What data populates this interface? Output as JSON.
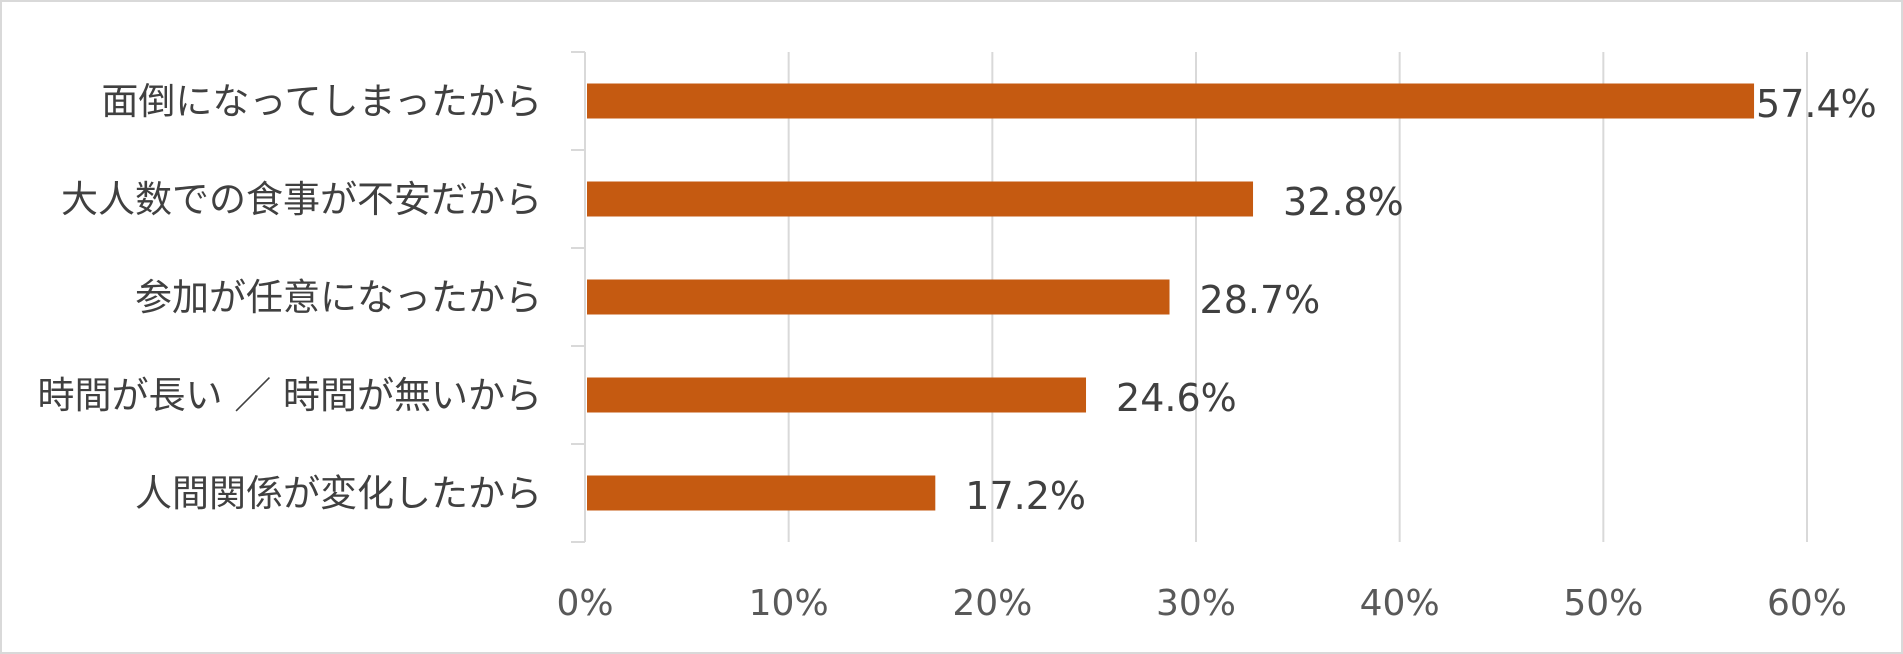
{
  "chart_data": {
    "type": "bar",
    "orientation": "horizontal",
    "categories": [
      "面倒になってしまったから",
      "大人数での食事が不安だから",
      "参加が任意になったから",
      "時間が長い ／ 時間が無いから",
      "人間関係が変化したから"
    ],
    "values": [
      57.4,
      32.8,
      28.7,
      24.6,
      17.2
    ],
    "value_labels": [
      "57.4%",
      "32.8%",
      "28.7%",
      "24.6%",
      "17.2%"
    ],
    "xlim": [
      0,
      60
    ],
    "xticks": [
      0,
      10,
      20,
      30,
      40,
      50,
      60
    ],
    "xtick_labels": [
      "0%",
      "10%",
      "20%",
      "30%",
      "40%",
      "50%",
      "60%"
    ],
    "grid": "vertical",
    "legend": "none",
    "bar_color": "#c55a11",
    "title": "",
    "xlabel": "",
    "ylabel": ""
  }
}
